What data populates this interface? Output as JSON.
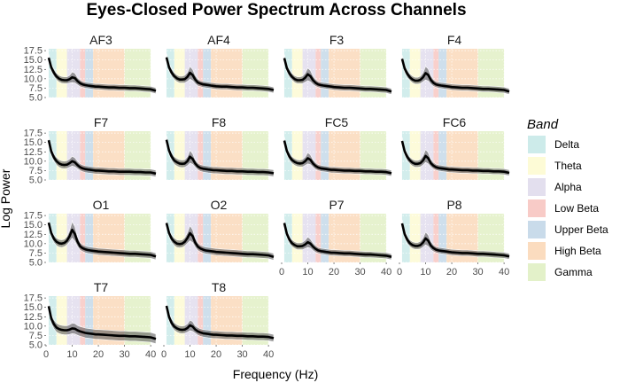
{
  "chart_data": {
    "type": "line",
    "title": "Eyes-Closed Power Spectrum Across Channels",
    "xlabel": "Frequency (Hz)",
    "ylabel": "Log Power",
    "xlim": [
      0,
      42
    ],
    "ylim": [
      5,
      18
    ],
    "x_ticks": [
      0,
      10,
      20,
      30,
      40
    ],
    "y_ticks": [
      5.0,
      7.5,
      10.0,
      12.5,
      15.0,
      17.5
    ],
    "y_tick_labels": [
      "5.0",
      "7.5",
      "10.0",
      "12.5",
      "15.0",
      "17.5"
    ],
    "grid": true,
    "legend": {
      "title": "Band",
      "position": "right",
      "entries": [
        {
          "name": "Delta",
          "range": [
            1,
            4
          ],
          "color": "#cdebea"
        },
        {
          "name": "Theta",
          "range": [
            4,
            8
          ],
          "color": "#fdfbd6"
        },
        {
          "name": "Alpha",
          "range": [
            8,
            13
          ],
          "color": "#e3dfee"
        },
        {
          "name": "Low Beta",
          "range": [
            13,
            15
          ],
          "color": "#f8cbc7"
        },
        {
          "name": "Upper Beta",
          "range": [
            15,
            18
          ],
          "color": "#c9dbea"
        },
        {
          "name": "High Beta",
          "range": [
            18,
            30
          ],
          "color": "#fbdcbf"
        },
        {
          "name": "Gamma",
          "range": [
            30,
            40
          ],
          "color": "#e3f1c9"
        }
      ]
    },
    "x": [
      1,
      2,
      3,
      4,
      5,
      6,
      7,
      8,
      9,
      10,
      11,
      12,
      13,
      14,
      15,
      16,
      17,
      18,
      19,
      20,
      22,
      24,
      26,
      28,
      30,
      32,
      34,
      36,
      38,
      40,
      42
    ],
    "panels": [
      {
        "name": "AF3",
        "mean": [
          15.6,
          13.0,
          11.6,
          10.6,
          10.0,
          9.7,
          9.6,
          9.6,
          9.9,
          10.4,
          10.2,
          9.4,
          8.8,
          8.5,
          8.3,
          8.2,
          8.1,
          8.0,
          7.9,
          7.9,
          7.8,
          7.7,
          7.7,
          7.6,
          7.6,
          7.5,
          7.5,
          7.4,
          7.3,
          7.2,
          6.8
        ],
        "spread": [
          1.0,
          1.0,
          1.0,
          0.9,
          0.9,
          0.9,
          0.9,
          0.9,
          1.0,
          1.4,
          1.3,
          1.0,
          0.9,
          0.8,
          0.8,
          0.8,
          0.8,
          0.8,
          0.8,
          0.8,
          0.8,
          0.8,
          0.8,
          0.8,
          0.8,
          0.8,
          0.8,
          0.8,
          0.8,
          0.8,
          0.8
        ]
      },
      {
        "name": "AF4",
        "mean": [
          15.7,
          13.0,
          11.6,
          10.7,
          10.1,
          9.8,
          9.8,
          9.9,
          10.5,
          11.6,
          11.0,
          9.8,
          9.0,
          8.7,
          8.5,
          8.4,
          8.3,
          8.2,
          8.1,
          8.0,
          7.9,
          7.9,
          7.8,
          7.7,
          7.7,
          7.6,
          7.6,
          7.5,
          7.4,
          7.3,
          7.0
        ],
        "spread": [
          1.0,
          1.0,
          1.0,
          0.9,
          0.9,
          0.9,
          0.9,
          1.0,
          1.2,
          1.7,
          1.5,
          1.1,
          0.9,
          0.8,
          0.8,
          0.8,
          0.8,
          0.8,
          0.8,
          0.8,
          0.8,
          0.8,
          0.8,
          0.8,
          0.8,
          0.8,
          0.8,
          0.8,
          0.8,
          0.8,
          0.8
        ]
      },
      {
        "name": "F3",
        "mean": [
          15.5,
          12.8,
          11.4,
          10.5,
          9.9,
          9.6,
          9.6,
          9.7,
          10.3,
          11.2,
          10.7,
          9.6,
          8.9,
          8.5,
          8.3,
          8.2,
          8.1,
          8.0,
          7.9,
          7.8,
          7.7,
          7.6,
          7.6,
          7.5,
          7.4,
          7.3,
          7.3,
          7.2,
          7.1,
          7.0,
          6.6
        ],
        "spread": [
          1.0,
          1.0,
          1.0,
          0.9,
          0.9,
          0.9,
          0.9,
          1.0,
          1.2,
          1.7,
          1.5,
          1.1,
          0.9,
          0.8,
          0.8,
          0.8,
          0.8,
          0.8,
          0.8,
          0.8,
          0.8,
          0.8,
          0.8,
          0.8,
          0.8,
          0.8,
          0.8,
          0.8,
          0.8,
          0.8,
          0.8
        ]
      },
      {
        "name": "F4",
        "mean": [
          15.3,
          12.7,
          11.3,
          10.4,
          9.8,
          9.5,
          9.5,
          9.7,
          10.4,
          11.5,
          11.0,
          9.7,
          8.9,
          8.5,
          8.3,
          8.2,
          8.1,
          8.0,
          7.9,
          7.8,
          7.7,
          7.6,
          7.6,
          7.5,
          7.4,
          7.3,
          7.3,
          7.2,
          7.1,
          7.0,
          6.6
        ],
        "spread": [
          1.0,
          1.0,
          1.0,
          0.9,
          0.9,
          0.9,
          0.9,
          1.0,
          1.2,
          1.8,
          1.6,
          1.1,
          0.9,
          0.8,
          0.8,
          0.8,
          0.8,
          0.8,
          0.8,
          0.8,
          0.8,
          0.8,
          0.8,
          0.8,
          0.8,
          0.8,
          0.8,
          0.8,
          0.8,
          0.8,
          0.8
        ]
      },
      {
        "name": "F7",
        "mean": [
          15.6,
          12.6,
          11.0,
          10.0,
          9.4,
          9.1,
          9.0,
          9.1,
          9.5,
          10.0,
          9.7,
          9.0,
          8.4,
          8.1,
          7.9,
          7.8,
          7.7,
          7.6,
          7.5,
          7.5,
          7.4,
          7.3,
          7.3,
          7.2,
          7.2,
          7.2,
          7.1,
          7.1,
          7.0,
          7.0,
          6.7
        ],
        "spread": [
          1.1,
          1.1,
          1.0,
          1.0,
          1.0,
          1.0,
          1.0,
          1.0,
          1.1,
          1.3,
          1.2,
          1.0,
          0.9,
          0.9,
          0.9,
          0.9,
          0.9,
          0.9,
          0.9,
          0.9,
          0.9,
          0.9,
          0.9,
          0.9,
          0.9,
          0.9,
          0.9,
          0.9,
          0.9,
          0.9,
          0.9
        ]
      },
      {
        "name": "F8",
        "mean": [
          15.7,
          12.8,
          11.2,
          10.2,
          9.7,
          9.4,
          9.3,
          9.4,
          10.0,
          11.2,
          10.6,
          9.4,
          8.6,
          8.2,
          8.0,
          7.9,
          7.8,
          7.7,
          7.6,
          7.6,
          7.5,
          7.4,
          7.4,
          7.3,
          7.3,
          7.2,
          7.2,
          7.1,
          7.1,
          7.0,
          6.8
        ],
        "spread": [
          1.1,
          1.1,
          1.0,
          1.0,
          1.0,
          1.0,
          1.0,
          1.0,
          1.2,
          1.7,
          1.4,
          1.0,
          0.9,
          0.9,
          0.9,
          0.9,
          0.9,
          0.9,
          0.9,
          0.9,
          0.9,
          0.9,
          0.9,
          0.9,
          0.9,
          0.9,
          0.9,
          0.9,
          0.9,
          0.9,
          0.9
        ]
      },
      {
        "name": "FC5",
        "mean": [
          15.5,
          12.7,
          11.2,
          10.3,
          9.8,
          9.5,
          9.4,
          9.5,
          10.0,
          10.8,
          10.4,
          9.4,
          8.7,
          8.3,
          8.1,
          8.0,
          7.9,
          7.8,
          7.7,
          7.7,
          7.6,
          7.5,
          7.5,
          7.4,
          7.4,
          7.3,
          7.3,
          7.2,
          7.2,
          7.1,
          6.8
        ],
        "spread": [
          1.0,
          1.0,
          1.0,
          0.9,
          0.9,
          0.9,
          0.9,
          1.0,
          1.1,
          1.5,
          1.3,
          1.0,
          0.9,
          0.8,
          0.8,
          0.8,
          0.8,
          0.8,
          0.8,
          0.8,
          0.8,
          0.8,
          0.8,
          0.8,
          0.8,
          0.8,
          0.8,
          0.8,
          0.8,
          0.8,
          0.8
        ]
      },
      {
        "name": "FC6",
        "mean": [
          15.4,
          12.6,
          11.1,
          10.2,
          9.6,
          9.3,
          9.3,
          9.5,
          10.2,
          11.4,
          10.8,
          9.5,
          8.8,
          8.4,
          8.2,
          8.1,
          8.0,
          7.9,
          7.8,
          7.8,
          7.7,
          7.6,
          7.6,
          7.5,
          7.5,
          7.4,
          7.4,
          7.3,
          7.3,
          7.2,
          6.9
        ],
        "spread": [
          1.0,
          1.0,
          1.0,
          0.9,
          0.9,
          0.9,
          0.9,
          1.0,
          1.2,
          1.7,
          1.5,
          1.0,
          0.9,
          0.8,
          0.8,
          0.8,
          0.8,
          0.8,
          0.8,
          0.8,
          0.8,
          0.8,
          0.8,
          0.8,
          0.8,
          0.8,
          0.8,
          0.8,
          0.8,
          0.8,
          0.8
        ]
      },
      {
        "name": "O1",
        "mean": [
          15.6,
          12.8,
          11.3,
          10.5,
          10.1,
          10.0,
          10.2,
          10.8,
          12.0,
          13.7,
          12.6,
          10.6,
          9.3,
          8.8,
          8.5,
          8.3,
          8.2,
          8.1,
          8.0,
          7.9,
          7.8,
          7.7,
          7.6,
          7.5,
          7.4,
          7.3,
          7.3,
          7.2,
          7.1,
          7.0,
          6.6
        ],
        "spread": [
          1.0,
          1.0,
          1.0,
          1.0,
          1.0,
          1.0,
          1.0,
          1.1,
          1.5,
          2.2,
          1.9,
          1.3,
          1.0,
          0.9,
          0.9,
          0.9,
          0.9,
          0.9,
          0.9,
          0.9,
          0.9,
          0.9,
          0.9,
          0.9,
          0.9,
          0.9,
          0.9,
          0.9,
          0.9,
          0.9,
          0.9
        ]
      },
      {
        "name": "O2",
        "mean": [
          15.5,
          12.8,
          11.3,
          10.5,
          10.0,
          9.9,
          10.0,
          10.5,
          11.5,
          12.8,
          12.0,
          10.3,
          9.2,
          8.7,
          8.4,
          8.2,
          8.1,
          8.0,
          7.9,
          7.8,
          7.7,
          7.6,
          7.5,
          7.4,
          7.3,
          7.2,
          7.2,
          7.1,
          7.0,
          6.9,
          6.5
        ],
        "spread": [
          1.0,
          1.0,
          1.0,
          1.0,
          1.0,
          1.0,
          1.0,
          1.1,
          1.4,
          2.0,
          1.7,
          1.2,
          1.0,
          0.9,
          0.9,
          0.9,
          0.9,
          0.9,
          0.9,
          0.9,
          0.9,
          0.9,
          0.9,
          0.9,
          0.9,
          0.9,
          0.9,
          0.9,
          0.9,
          0.9,
          0.9
        ]
      },
      {
        "name": "P7",
        "mean": [
          15.5,
          12.6,
          11.0,
          10.1,
          9.6,
          9.3,
          9.3,
          9.4,
          9.8,
          10.4,
          10.0,
          9.2,
          8.6,
          8.2,
          8.0,
          7.9,
          7.8,
          7.7,
          7.6,
          7.6,
          7.5,
          7.4,
          7.4,
          7.3,
          7.2,
          7.1,
          7.1,
          7.0,
          6.9,
          6.8,
          6.5
        ],
        "spread": [
          1.0,
          1.0,
          1.0,
          0.9,
          0.9,
          0.9,
          0.9,
          1.0,
          1.1,
          1.4,
          1.2,
          1.0,
          0.9,
          0.8,
          0.8,
          0.8,
          0.8,
          0.8,
          0.8,
          0.8,
          0.8,
          0.8,
          0.8,
          0.8,
          0.8,
          0.8,
          0.8,
          0.8,
          0.8,
          0.8,
          0.8
        ]
      },
      {
        "name": "P8",
        "mean": [
          15.4,
          12.5,
          11.0,
          10.1,
          9.6,
          9.4,
          9.4,
          9.6,
          10.3,
          11.4,
          10.8,
          9.5,
          8.8,
          8.4,
          8.2,
          8.1,
          8.0,
          7.9,
          7.8,
          7.7,
          7.6,
          7.5,
          7.5,
          7.4,
          7.3,
          7.3,
          7.2,
          7.1,
          7.0,
          6.9,
          6.6
        ],
        "spread": [
          1.0,
          1.0,
          1.0,
          0.9,
          0.9,
          0.9,
          0.9,
          1.0,
          1.2,
          1.7,
          1.5,
          1.1,
          0.9,
          0.8,
          0.8,
          0.8,
          0.8,
          0.8,
          0.8,
          0.8,
          0.8,
          0.8,
          0.8,
          0.8,
          0.8,
          0.8,
          0.8,
          0.8,
          0.8,
          0.8,
          0.8
        ]
      },
      {
        "name": "T7",
        "mean": [
          15.3,
          12.0,
          10.5,
          9.6,
          9.2,
          9.0,
          8.9,
          8.9,
          9.1,
          9.4,
          9.3,
          8.9,
          8.6,
          8.4,
          8.2,
          8.1,
          8.0,
          7.9,
          7.8,
          7.8,
          7.7,
          7.6,
          7.5,
          7.4,
          7.4,
          7.3,
          7.3,
          7.2,
          7.1,
          7.0,
          6.6
        ],
        "spread": [
          1.2,
          1.2,
          1.2,
          1.2,
          1.2,
          1.2,
          1.2,
          1.2,
          1.3,
          1.4,
          1.4,
          1.3,
          1.3,
          1.3,
          1.3,
          1.3,
          1.3,
          1.3,
          1.3,
          1.3,
          1.3,
          1.3,
          1.3,
          1.3,
          1.3,
          1.3,
          1.3,
          1.3,
          1.3,
          1.3,
          1.3
        ]
      },
      {
        "name": "T8",
        "mean": [
          15.4,
          12.4,
          10.8,
          9.9,
          9.4,
          9.1,
          9.0,
          9.1,
          9.5,
          10.2,
          9.9,
          9.1,
          8.6,
          8.3,
          8.1,
          8.0,
          7.9,
          7.8,
          7.7,
          7.7,
          7.6,
          7.5,
          7.5,
          7.4,
          7.4,
          7.3,
          7.3,
          7.2,
          7.2,
          7.1,
          6.8
        ],
        "spread": [
          1.1,
          1.1,
          1.1,
          1.0,
          1.0,
          1.0,
          1.0,
          1.0,
          1.1,
          1.4,
          1.3,
          1.0,
          1.0,
          1.0,
          1.0,
          1.0,
          1.0,
          1.0,
          1.0,
          1.0,
          1.0,
          1.0,
          1.0,
          1.0,
          1.0,
          1.0,
          1.0,
          1.0,
          1.0,
          1.0,
          1.0
        ]
      }
    ]
  }
}
